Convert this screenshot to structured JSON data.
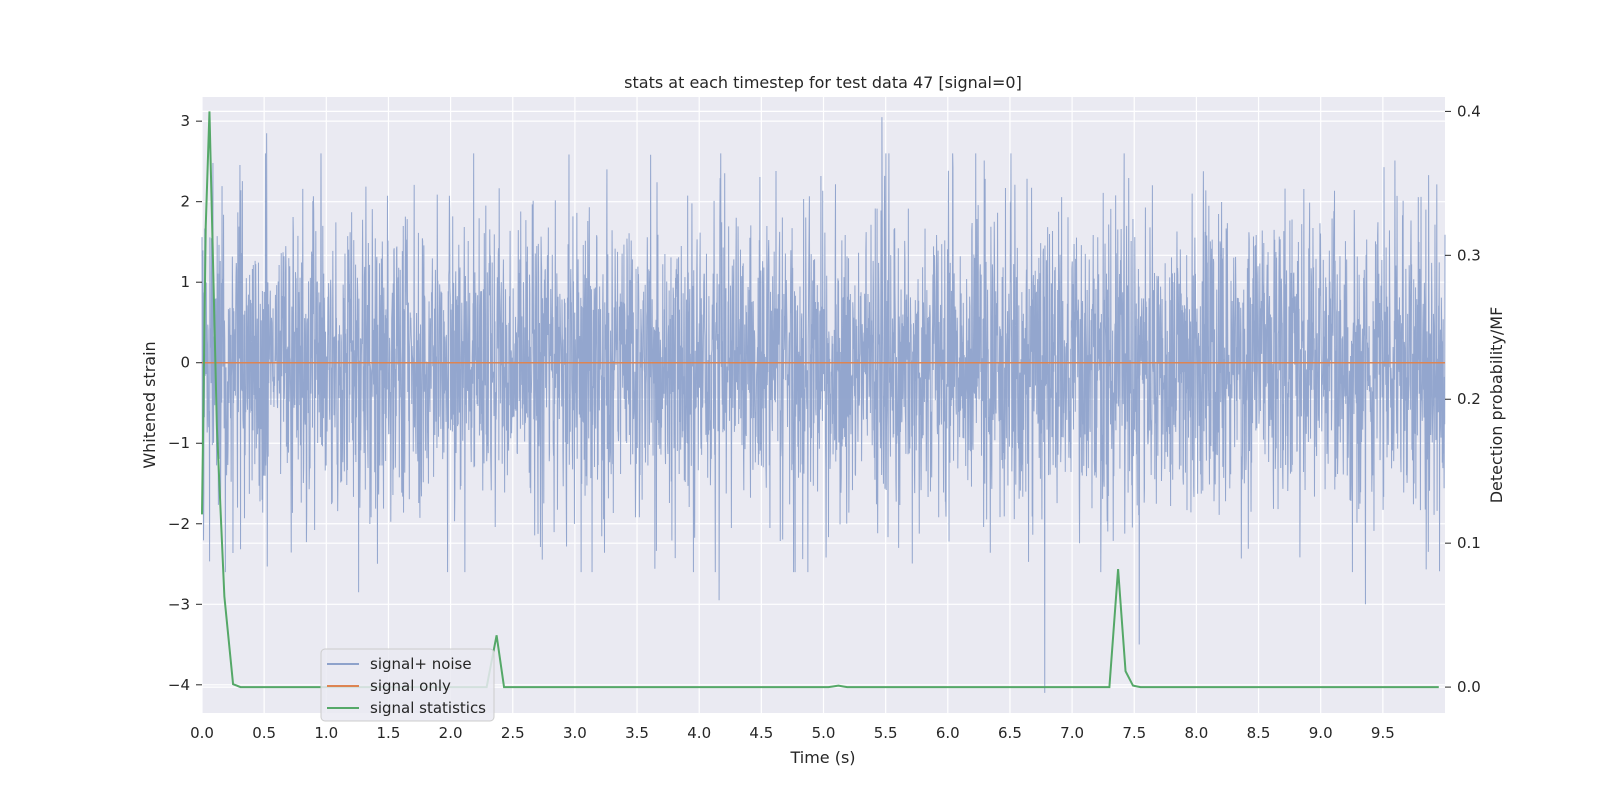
{
  "chart_data": {
    "type": "line",
    "title": "stats at each timestep for test data 47 [signal=0]",
    "xlabel": "Time (s)",
    "ylabel": "Whitened strain",
    "y2label": "Detection probability/MF",
    "xlim": [
      0.0,
      10.0
    ],
    "ylim": [
      -4.35,
      3.3
    ],
    "y2lim": [
      -0.018,
      0.41
    ],
    "xticks": [
      "0.0",
      "0.5",
      "1.0",
      "1.5",
      "2.0",
      "2.5",
      "3.0",
      "3.5",
      "4.0",
      "4.5",
      "5.0",
      "5.5",
      "6.0",
      "6.5",
      "7.0",
      "7.5",
      "8.0",
      "8.5",
      "9.0",
      "9.5"
    ],
    "yticks": [
      "3",
      "2",
      "1",
      "0",
      "−1",
      "−2",
      "−3",
      "−4"
    ],
    "y2ticks": [
      "0.4",
      "0.3",
      "0.2",
      "0.1",
      "0.0"
    ],
    "grid": true,
    "legend_position": "lower-left",
    "colors": {
      "noise": "#8ea2cb",
      "signal_only": "#dd8452",
      "statistics": "#55a868",
      "plot_bg": "#eaeaf2",
      "grid": "#ffffff"
    },
    "series": [
      {
        "name": "signal+ noise",
        "axis": "left",
        "description_values": "whitened strain noise, dense fluctuation roughly between -2.5 and 2.8",
        "x_range": [
          0.0,
          10.0
        ],
        "typical_envelope": [
          -2.0,
          2.0
        ],
        "notable_extremes": [
          {
            "x": 5.47,
            "y": 3.05
          },
          {
            "x": 0.52,
            "y": 2.85
          },
          {
            "x": 6.78,
            "y": -4.1
          },
          {
            "x": 7.54,
            "y": -3.5
          },
          {
            "x": 9.36,
            "y": -3.0
          },
          {
            "x": 4.16,
            "y": -2.95
          },
          {
            "x": 1.26,
            "y": -2.85
          }
        ]
      },
      {
        "name": "signal only",
        "axis": "left",
        "x": [
          0.0,
          10.0
        ],
        "values": [
          0.0,
          0.0
        ]
      },
      {
        "name": "signal statistics",
        "axis": "right",
        "x": [
          0.0,
          0.03,
          0.06,
          0.12,
          0.18,
          0.25,
          0.31,
          2.29,
          2.37,
          2.43,
          2.49,
          5.04,
          5.12,
          5.19,
          7.3,
          7.37,
          7.43,
          7.49,
          7.55,
          9.95
        ],
        "values": [
          0.12,
          0.32,
          0.4,
          0.18,
          0.063,
          0.002,
          0.0,
          0.0,
          0.036,
          0.0,
          0.0,
          0.0,
          0.001,
          0.0,
          0.0,
          0.082,
          0.011,
          0.001,
          0.0,
          0.0
        ]
      }
    ],
    "legend": [
      "signal+ noise",
      "signal only",
      "signal statistics"
    ]
  }
}
